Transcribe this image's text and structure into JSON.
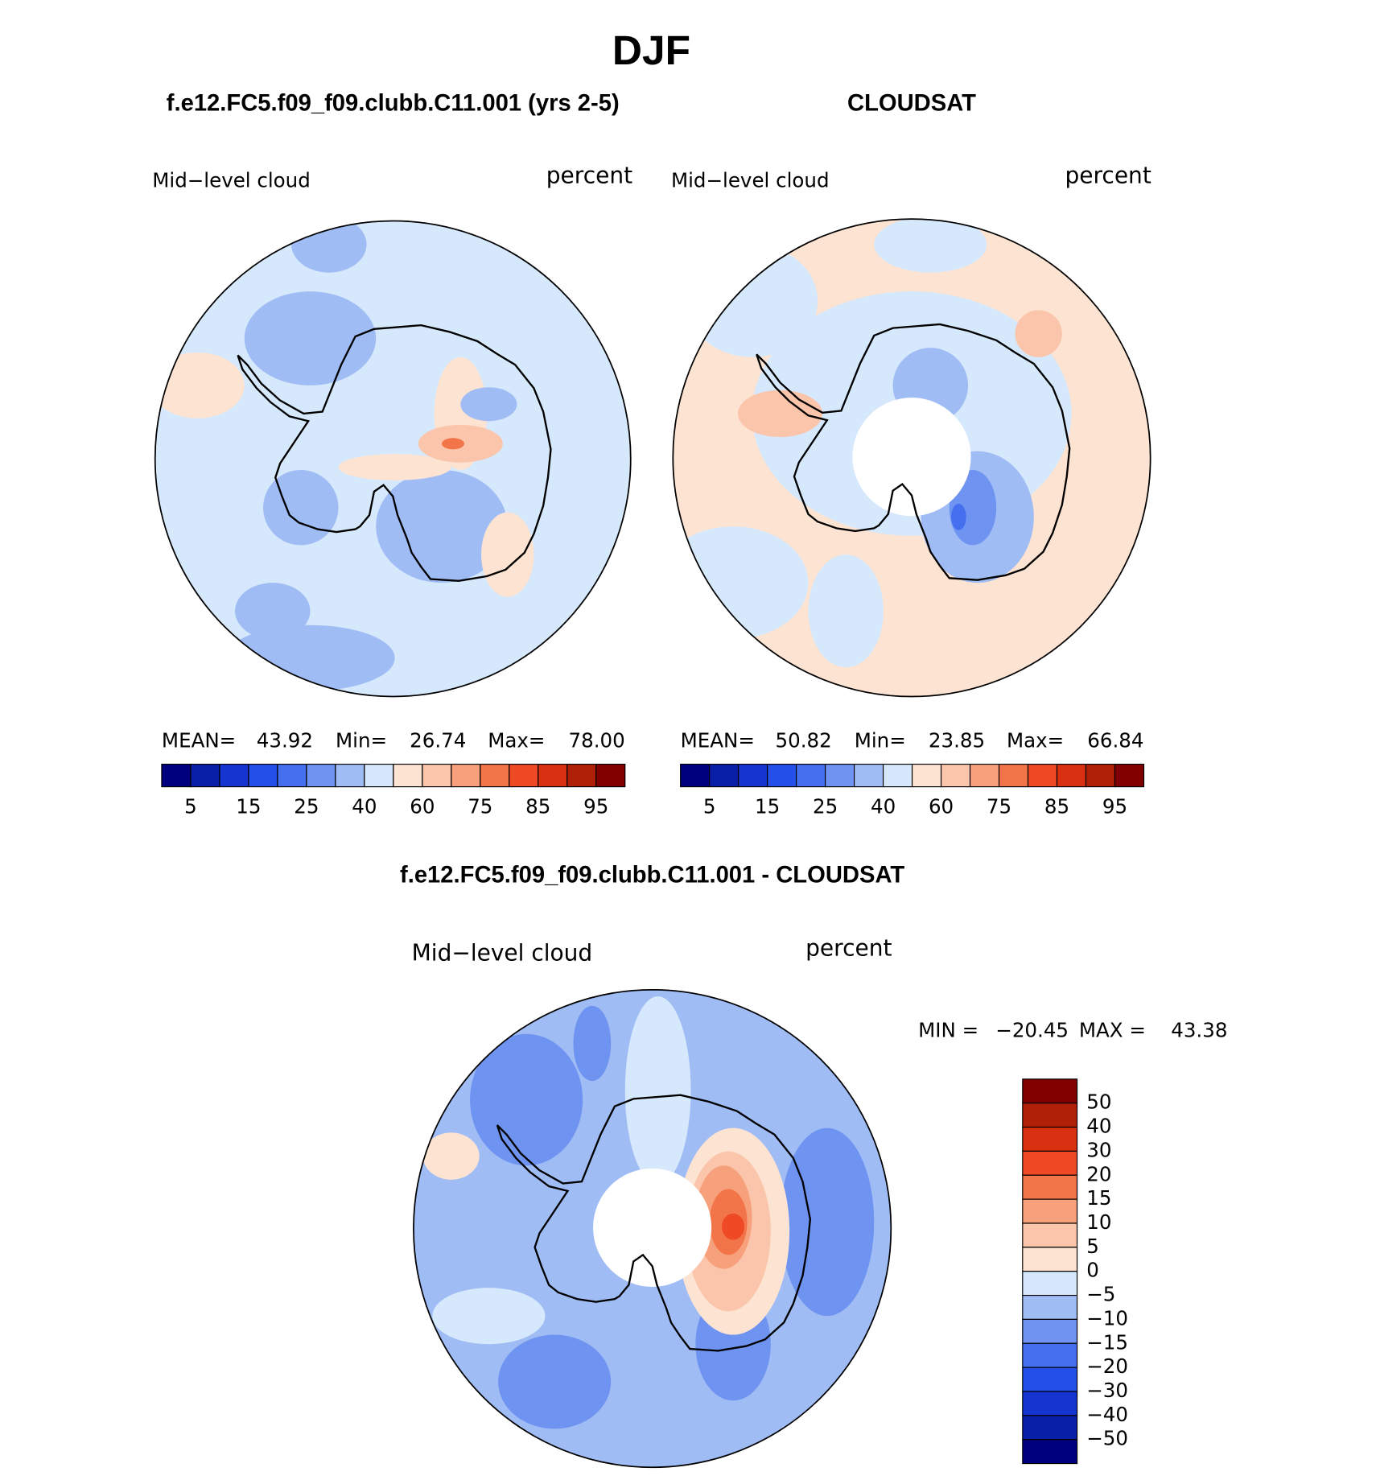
{
  "title": "DJF",
  "panels": [
    {
      "title": "f.e12.FC5.f09_f09.clubb.C11.001 (yrs 2-5)",
      "variable": "Mid−level cloud",
      "units": "percent",
      "stats": [
        {
          "label": "MEAN=",
          "value": "43.92"
        },
        {
          "label": "Min=",
          "value": "26.74"
        },
        {
          "label": "Max=",
          "value": "78.00"
        }
      ]
    },
    {
      "title": "CLOUDSAT",
      "variable": "Mid−level cloud",
      "units": "percent",
      "stats": [
        {
          "label": "MEAN=",
          "value": "50.82"
        },
        {
          "label": "Min=",
          "value": "23.85"
        },
        {
          "label": "Max=",
          "value": "66.84"
        }
      ]
    }
  ],
  "colorbar": {
    "colors": [
      "#00007f",
      "#0a1fa8",
      "#1535d0",
      "#2350e8",
      "#4470f0",
      "#6f93f0",
      "#a0bcf5",
      "#d6e8fb",
      "#fde3d2",
      "#fbc5ab",
      "#f7a07c",
      "#f27449",
      "#ee4a26",
      "#d83010",
      "#b01f08",
      "#800000"
    ],
    "labels": [
      "5",
      "15",
      "25",
      "40",
      "60",
      "75",
      "85",
      "95"
    ]
  },
  "difference": {
    "title": "f.e12.FC5.f09_f09.clubb.C11.001 - CLOUDSAT",
    "variable": "Mid−level cloud",
    "units": "percent",
    "stats": [
      {
        "label": "MIN =",
        "value": "−20.45"
      },
      {
        "label": "MAX =",
        "value": "43.38"
      }
    ],
    "colorbar": {
      "colors": [
        "#800000",
        "#b01f08",
        "#d83010",
        "#ee4a26",
        "#f27449",
        "#f7a07c",
        "#fbc5ab",
        "#fde3d2",
        "#d6e8fb",
        "#a0bcf5",
        "#6f93f0",
        "#4470f0",
        "#2350e8",
        "#1535d0",
        "#0a1fa8",
        "#00007f"
      ],
      "labels": [
        "50",
        "40",
        "30",
        "20",
        "15",
        "10",
        "5",
        "0",
        "−5",
        "−10",
        "−15",
        "−20",
        "−30",
        "−40",
        "−50"
      ]
    }
  }
}
